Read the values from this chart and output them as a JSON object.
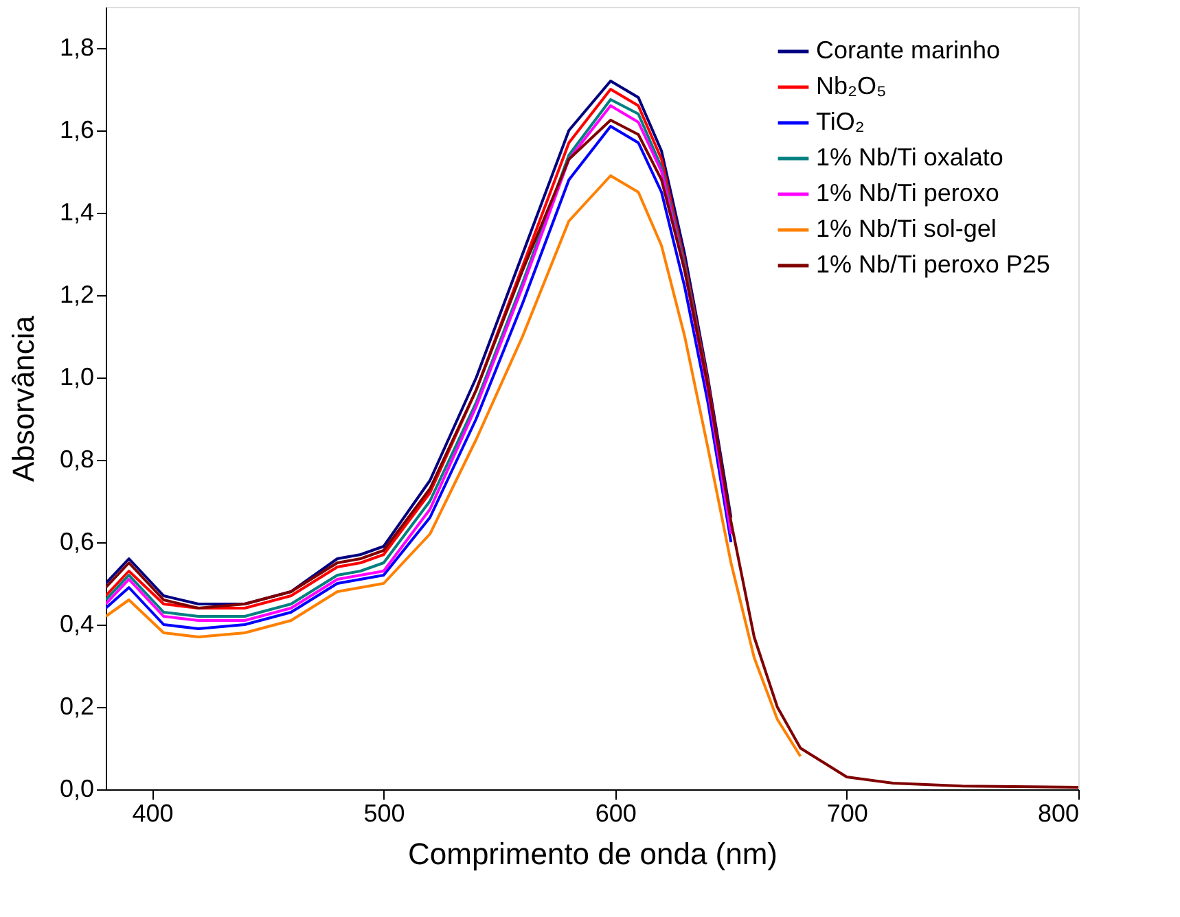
{
  "chart_data": {
    "type": "line",
    "xlabel": "Comprimento de onda (nm)",
    "ylabel": "Absorvância",
    "x": [
      380,
      390,
      405,
      420,
      440,
      460,
      480,
      490,
      500,
      520,
      540,
      560,
      580,
      598,
      610,
      620,
      630,
      640,
      650,
      660,
      670,
      680,
      700,
      720,
      750,
      800
    ],
    "xlim": [
      380,
      800
    ],
    "xticks": [
      400,
      500,
      600,
      700,
      800
    ],
    "ylim": [
      0,
      1.9
    ],
    "yticks": [
      {
        "value": 0,
        "label": "0,0"
      },
      {
        "value": 0.2,
        "label": "0,2"
      },
      {
        "value": 0.4,
        "label": "0,4"
      },
      {
        "value": 0.6,
        "label": "0,6"
      },
      {
        "value": 0.8,
        "label": "0,8"
      },
      {
        "value": 1.0,
        "label": "1,0"
      },
      {
        "value": 1.2,
        "label": "1,2"
      },
      {
        "value": 1.4,
        "label": "1,4"
      },
      {
        "value": 1.6,
        "label": "1,6"
      },
      {
        "value": 1.8,
        "label": "1,8"
      }
    ],
    "grid": false,
    "legend": "top right",
    "marker": "none",
    "line_style": "solid",
    "series": [
      {
        "name": "Corante marinho",
        "color": "#000080",
        "values": [
          0.5,
          0.56,
          0.47,
          0.45,
          0.45,
          0.48,
          0.56,
          0.57,
          0.59,
          0.75,
          1.0,
          1.3,
          1.6,
          1.72,
          1.68,
          1.55,
          1.3,
          1.0,
          0.66,
          null,
          null,
          null,
          null,
          null,
          null,
          null
        ]
      },
      {
        "name": "Nb₂O₅",
        "color": "#ff0000",
        "values": [
          0.47,
          0.53,
          0.45,
          0.44,
          0.44,
          0.47,
          0.54,
          0.55,
          0.57,
          0.72,
          0.97,
          1.27,
          1.57,
          1.7,
          1.66,
          1.53,
          1.28,
          0.99,
          0.64,
          null,
          null,
          null,
          null,
          null,
          null,
          null
        ]
      },
      {
        "name": "TiO₂",
        "color": "#0000ff",
        "values": [
          0.44,
          0.49,
          0.4,
          0.39,
          0.4,
          0.43,
          0.5,
          0.51,
          0.52,
          0.66,
          0.9,
          1.18,
          1.48,
          1.61,
          1.57,
          1.45,
          1.22,
          0.94,
          0.6,
          null,
          null,
          null,
          null,
          null,
          null,
          null
        ]
      },
      {
        "name": "1% Nb/Ti oxalato",
        "color": "#008080",
        "values": [
          0.46,
          0.52,
          0.43,
          0.42,
          0.42,
          0.45,
          0.52,
          0.53,
          0.55,
          0.7,
          0.94,
          1.23,
          1.54,
          1.675,
          1.64,
          1.51,
          1.27,
          0.98,
          0.63,
          null,
          null,
          null,
          null,
          null,
          null,
          null
        ]
      },
      {
        "name": "1% Nb/Ti peroxo",
        "color": "#ff00ff",
        "values": [
          0.45,
          0.51,
          0.42,
          0.41,
          0.41,
          0.44,
          0.51,
          0.52,
          0.53,
          0.68,
          0.93,
          1.22,
          1.53,
          1.66,
          1.62,
          1.5,
          1.26,
          0.97,
          0.62,
          null,
          null,
          null,
          null,
          null,
          null,
          null
        ]
      },
      {
        "name": "1% Nb/Ti sol-gel",
        "color": "#ff8000",
        "values": [
          0.42,
          0.46,
          0.38,
          0.37,
          0.38,
          0.41,
          0.48,
          0.49,
          0.5,
          0.62,
          0.85,
          1.1,
          1.38,
          1.49,
          1.45,
          1.32,
          1.1,
          0.83,
          0.55,
          0.32,
          0.17,
          0.08,
          null,
          null,
          null,
          null
        ]
      },
      {
        "name": "1% Nb/Ti peroxo P25",
        "color": "#800000",
        "values": [
          0.49,
          0.55,
          0.46,
          0.44,
          0.45,
          0.48,
          0.55,
          0.56,
          0.58,
          0.73,
          0.97,
          1.26,
          1.53,
          1.625,
          1.59,
          1.48,
          1.26,
          0.98,
          0.65,
          0.37,
          0.2,
          0.1,
          0.03,
          0.015,
          0.008,
          0.005
        ]
      }
    ]
  }
}
